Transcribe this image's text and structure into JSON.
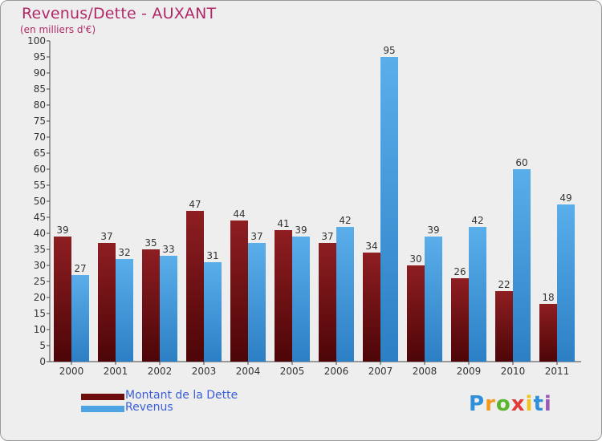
{
  "chart_data": {
    "type": "bar",
    "title": "Revenus/Dette - AUXANT",
    "subtitle": "(en milliers d'€)",
    "xlabel": "",
    "ylabel": "",
    "ylim": [
      0,
      100
    ],
    "yticks": [
      0,
      5,
      10,
      15,
      20,
      25,
      30,
      35,
      40,
      45,
      50,
      55,
      60,
      65,
      70,
      75,
      80,
      85,
      90,
      95,
      100
    ],
    "grid": false,
    "categories": [
      "2000",
      "2001",
      "2002",
      "2003",
      "2004",
      "2005",
      "2006",
      "2007",
      "2008",
      "2009",
      "2010",
      "2011"
    ],
    "series": [
      {
        "name": "Montant de la Dette",
        "color": "#6e0b0d",
        "values": [
          39,
          37,
          35,
          47,
          44,
          41,
          37,
          34,
          30,
          26,
          22,
          18
        ]
      },
      {
        "name": "Revenus",
        "color": "#4ea3e2",
        "values": [
          27,
          32,
          33,
          31,
          37,
          39,
          42,
          95,
          39,
          42,
          60,
          49
        ]
      }
    ],
    "legend_position": "bottom-left"
  },
  "logo": {
    "letters": [
      "P",
      "r",
      "o",
      "x",
      "i",
      "t",
      "i"
    ],
    "colors": [
      "#2f8fd8",
      "#f29a1f",
      "#5bb52e",
      "#e23b3b",
      "#f2c21f",
      "#2f8fd8",
      "#9b59b6"
    ]
  }
}
